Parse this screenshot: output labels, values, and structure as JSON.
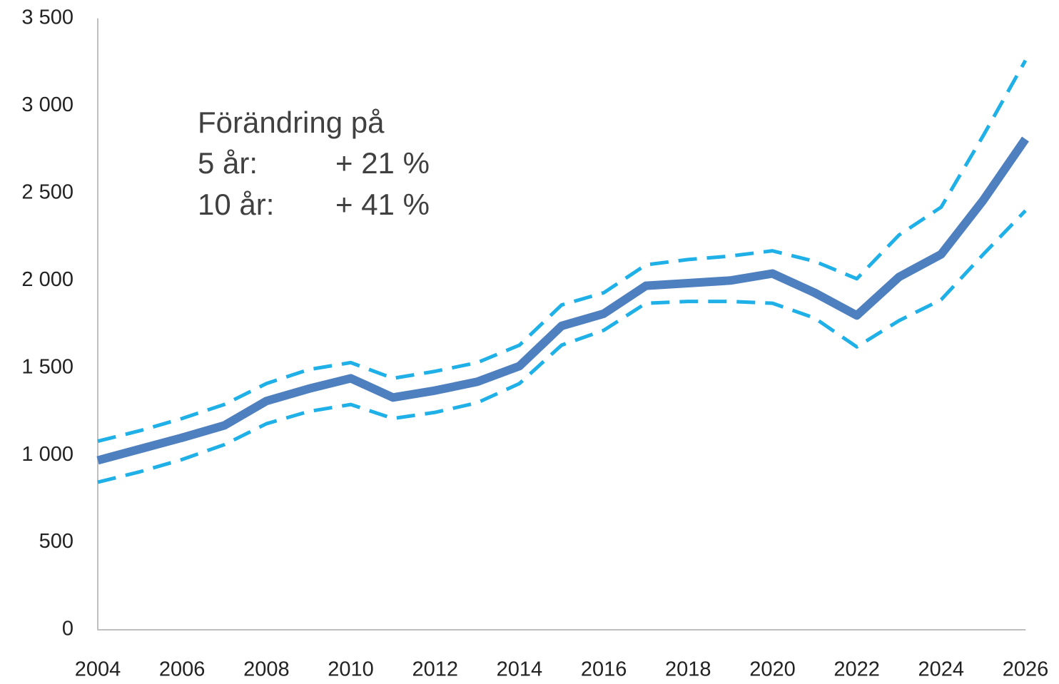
{
  "chart_data": {
    "type": "line",
    "x": [
      2004,
      2005,
      2006,
      2007,
      2008,
      2009,
      2010,
      2011,
      2012,
      2013,
      2014,
      2015,
      2016,
      2017,
      2018,
      2019,
      2020,
      2021,
      2022,
      2023,
      2024,
      2025,
      2026
    ],
    "series": [
      {
        "color": "#1fb0e8",
        "dashed": true,
        "values": [
          1080,
          1140,
          1210,
          1290,
          1410,
          1490,
          1530,
          1440,
          1480,
          1530,
          1630,
          1860,
          1930,
          2090,
          2120,
          2140,
          2170,
          2110,
          2010,
          2260,
          2420,
          2830,
          3260
        ]
      },
      {
        "color": "#4e7fbf",
        "dashed": false,
        "values": [
          970,
          1035,
          1100,
          1170,
          1310,
          1380,
          1440,
          1330,
          1370,
          1420,
          1510,
          1740,
          1810,
          1970,
          1985,
          2000,
          2040,
          1930,
          1800,
          2020,
          2150,
          2460,
          2810
        ]
      },
      {
        "color": "#1fb0e8",
        "dashed": true,
        "values": [
          845,
          905,
          975,
          1060,
          1180,
          1250,
          1290,
          1210,
          1245,
          1300,
          1410,
          1630,
          1715,
          1870,
          1880,
          1880,
          1870,
          1785,
          1620,
          1770,
          1890,
          2150,
          2400
        ]
      }
    ],
    "xlim": [
      2004,
      2026
    ],
    "xticks": [
      2004,
      2006,
      2008,
      2010,
      2012,
      2014,
      2016,
      2018,
      2020,
      2022,
      2024,
      2026
    ],
    "ylim": [
      0,
      3500
    ],
    "yticks": [
      0,
      500,
      {
        "value": 1000,
        "label": "1 000"
      },
      {
        "value": 1500,
        "label": "1 500"
      },
      {
        "value": 2000,
        "label": "2 000"
      },
      {
        "value": 2500,
        "label": "2 500"
      },
      {
        "value": 3000,
        "label": "3 000"
      },
      {
        "value": 3500,
        "label": "3 500"
      }
    ],
    "grid": false,
    "annotations": [
      "Förändring på",
      "5 år:",
      "+ 21 %",
      "10 år:",
      "+ 41 %"
    ]
  }
}
